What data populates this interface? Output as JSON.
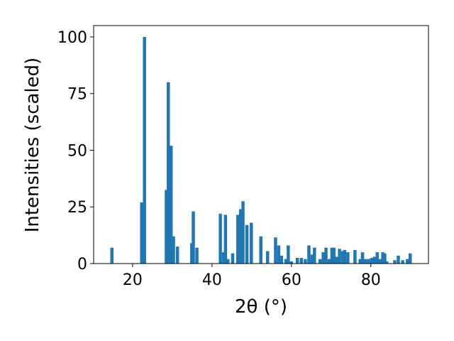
{
  "chart_data": {
    "type": "bar",
    "x_label": "2θ (°)",
    "y_label": "Intensities (scaled)",
    "color": "#1f77b4",
    "x": [
      14.8,
      22.3,
      23.0,
      28.5,
      29.0,
      29.7,
      30.3,
      31.3,
      34.9,
      35.3,
      36.2,
      42.1,
      42.9,
      43.4,
      44.0,
      45.2,
      46.5,
      47.2,
      47.8,
      48.8,
      49.9,
      52.3,
      54.0,
      56.0,
      56.8,
      57.5,
      58.6,
      59.2,
      60.0,
      61.5,
      62.5,
      63.5,
      64.4,
      65.2,
      65.8,
      67.2,
      68.0,
      68.7,
      69.5,
      70.2,
      70.7,
      71.5,
      72.1,
      72.9,
      73.4,
      74.2,
      76.0,
      77.3,
      77.9,
      78.6,
      79.4,
      80.2,
      80.9,
      81.6,
      82.4,
      83.0,
      83.5,
      84.0,
      86.0,
      86.9,
      88.0,
      89.2,
      89.9
    ],
    "values": [
      7,
      27,
      100,
      32.5,
      80,
      52,
      12,
      7.5,
      9,
      23,
      7,
      22,
      5,
      21.5,
      2,
      4.5,
      21.5,
      24,
      27.5,
      17,
      18,
      12,
      5.5,
      11.5,
      8,
      3.5,
      2,
      8,
      1,
      2.5,
      2.5,
      2,
      8,
      4,
      7,
      2,
      5,
      7,
      2,
      7,
      7,
      3,
      6.5,
      5.5,
      6,
      5,
      6,
      2,
      5,
      2,
      2,
      2.5,
      3,
      5,
      2,
      5,
      4.5,
      1,
      1.5,
      3.5,
      1.5,
      2,
      4.5
    ],
    "xlim": [
      10.2,
      94.5
    ],
    "ylim": [
      0,
      105
    ],
    "xticks": [
      20,
      40,
      60,
      80
    ],
    "yticks": [
      0,
      25,
      50,
      75,
      100
    ]
  }
}
